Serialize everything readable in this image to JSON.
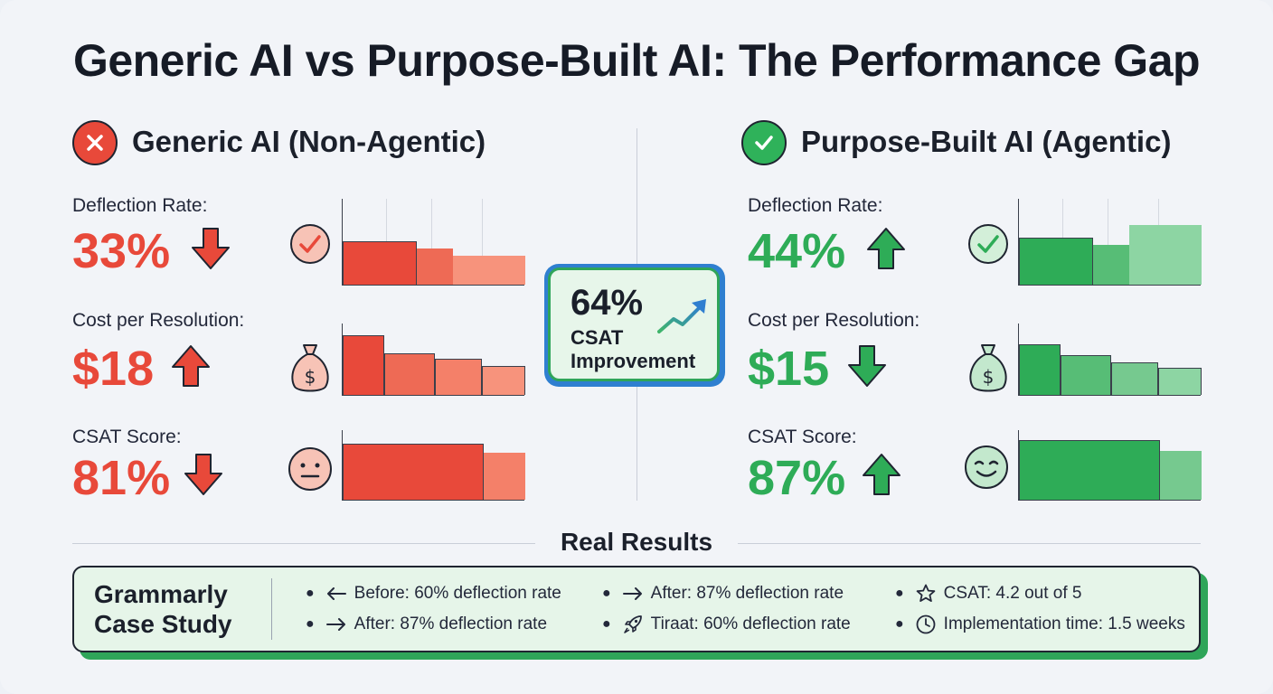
{
  "title": "Generic AI vs Purpose-Built AI: The Performance Gap",
  "left": {
    "heading": "Generic AI (Non-Agentic)",
    "metrics": [
      {
        "label": "Deflection Rate:",
        "value": "33%",
        "trend": "down",
        "icon": "check-circle-icon"
      },
      {
        "label": "Cost per Resolution:",
        "value": "$18",
        "trend": "up",
        "icon": "money-bag-icon"
      },
      {
        "label": "CSAT Score:",
        "value": "81%",
        "trend": "down",
        "icon": "neutral-face-icon"
      }
    ]
  },
  "right": {
    "heading": "Purpose-Built AI (Agentic)",
    "metrics": [
      {
        "label": "Deflection Rate:",
        "value": "44%",
        "trend": "up",
        "icon": "check-circle-icon"
      },
      {
        "label": "Cost per Resolution:",
        "value": "$15",
        "trend": "down",
        "icon": "money-bag-icon"
      },
      {
        "label": "CSAT Score:",
        "value": "87%",
        "trend": "up",
        "icon": "smiley-face-icon"
      }
    ]
  },
  "center": {
    "value": "64%",
    "line1": "CSAT",
    "line2": "Improvement",
    "icon": "trend-up-arrow-icon"
  },
  "results": {
    "title": "Real Results",
    "case_title_1": "Grammarly",
    "case_title_2": "Case Study",
    "items": [
      {
        "icon": "arrow-left-icon",
        "text": "Before: 60% deflection rate"
      },
      {
        "icon": "arrow-right-icon",
        "text": "After: 87% deflection rate"
      },
      {
        "icon": "arrow-right-icon",
        "text": "After: 87% deflection rate"
      },
      {
        "icon": "rocket-icon",
        "text": "Tiraat: 60% deflection rate"
      },
      {
        "icon": "star-icon",
        "text": "CSAT: 4.2 out of 5"
      },
      {
        "icon": "clock-icon",
        "text": "Implementation time: 1.5 weeks"
      }
    ]
  },
  "colors": {
    "red": "#e8493a",
    "green": "#2eac57",
    "blue": "#2f7fd0"
  }
}
